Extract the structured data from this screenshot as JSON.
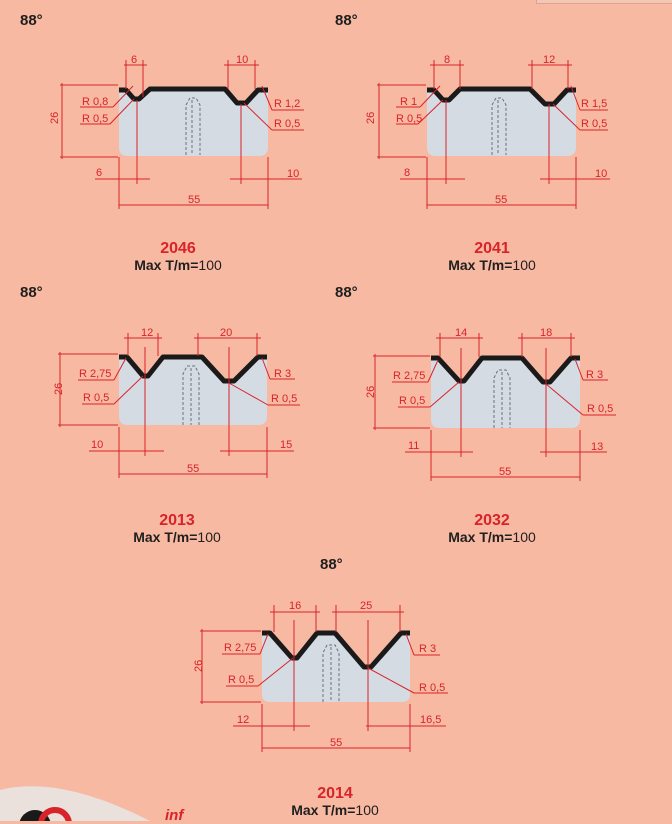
{
  "dies": [
    {
      "code": "2046",
      "angle": "88°",
      "max_label": "Max T/m=",
      "max_value": "100",
      "top_left_v": "6",
      "top_right_v": "10",
      "left_radius_top": "R 0,8",
      "left_radius_bottom": "R 0,5",
      "right_radius_top": "R 1,2",
      "right_radius_bottom": "R 0,5",
      "height": "26",
      "bottom_left_offset": "6",
      "bottom_right_offset": "10",
      "width": "55"
    },
    {
      "code": "2041",
      "angle": "88°",
      "max_label": "Max T/m=",
      "max_value": "100",
      "top_left_v": "8",
      "top_right_v": "12",
      "left_radius_top": "R 1",
      "left_radius_bottom": "R 0,5",
      "right_radius_top": "R 1,5",
      "right_radius_bottom": "R 0,5",
      "height": "26",
      "bottom_left_offset": "8",
      "bottom_right_offset": "10",
      "width": "55"
    },
    {
      "code": "2013",
      "angle": "88°",
      "max_label": "Max T/m=",
      "max_value": "100",
      "top_left_v": "12",
      "top_right_v": "20",
      "left_radius_top": "R 2,75",
      "left_radius_bottom": "R 0,5",
      "right_radius_top": "R 3",
      "right_radius_bottom": "R 0,5",
      "height": "26",
      "bottom_left_offset": "10",
      "bottom_right_offset": "15",
      "width": "55"
    },
    {
      "code": "2032",
      "angle": "88°",
      "max_label": "Max T/m=",
      "max_value": "100",
      "top_left_v": "14",
      "top_right_v": "18",
      "left_radius_top": "R 2,75",
      "left_radius_bottom": "R 0,5",
      "right_radius_top": "R 3",
      "right_radius_bottom": "R 0,5",
      "height": "26",
      "bottom_left_offset": "11",
      "bottom_right_offset": "13",
      "width": "55"
    },
    {
      "code": "2014",
      "angle": "88°",
      "max_label": "Max T/m=",
      "max_value": "100",
      "top_left_v": "16",
      "top_right_v": "25",
      "left_radius_top": "R 2,75",
      "left_radius_bottom": "R 0,5",
      "right_radius_top": "R 3",
      "right_radius_bottom": "R 0,5",
      "height": "26",
      "bottom_left_offset": "12",
      "bottom_right_offset": "16,5",
      "width": "55"
    }
  ],
  "footer": {
    "partial_word": "inf"
  },
  "colors": {
    "background": "#f8b9a2",
    "die_body": "#d5dbe3",
    "die_outline": "#1a1a1a",
    "dimension": "#d8232a",
    "caption_code": "#d8232a"
  }
}
